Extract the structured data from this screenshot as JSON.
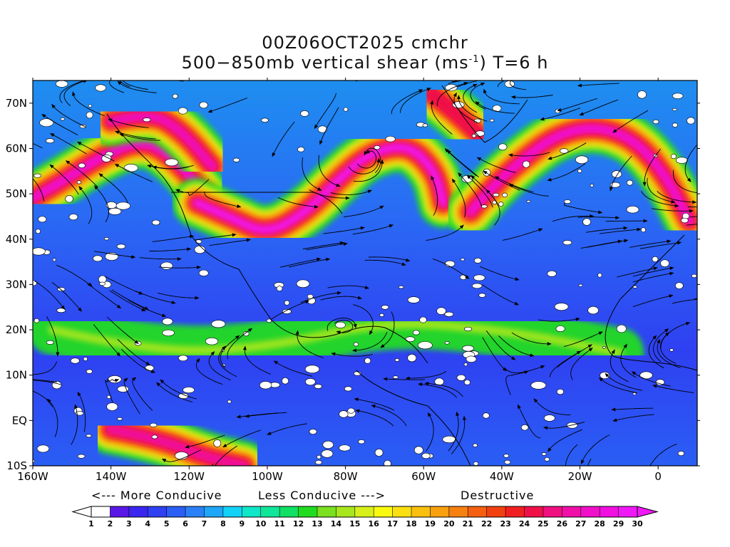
{
  "header": {
    "title_line1": "00Z06OCT2025 cmchr",
    "title_line2_pre": "500−850mb vertical shear (ms",
    "title_line2_sup": "-1",
    "title_line2_post": ") T=6 h"
  },
  "map": {
    "lon_labels": [
      "160W",
      "140W",
      "120W",
      "100W",
      "80W",
      "60W",
      "40W",
      "20W",
      "0"
    ],
    "lat_labels": [
      "70N",
      "60N",
      "50N",
      "40N",
      "30N",
      "20N",
      "10N",
      "EQ",
      "10S"
    ],
    "lon_range_deg": [
      -160,
      10
    ],
    "lat_range_deg": [
      -10,
      75
    ]
  },
  "legend": {
    "more_conducive": "<--- More Conducive",
    "less_conducive": "Less Conducive --->",
    "destructive": "Destructive",
    "levels": [
      "1",
      "2",
      "3",
      "4",
      "5",
      "6",
      "7",
      "8",
      "9",
      "10",
      "11",
      "12",
      "13",
      "14",
      "15",
      "16",
      "17",
      "18",
      "19",
      "20",
      "21",
      "22",
      "23",
      "24",
      "25",
      "26",
      "27",
      "28",
      "29",
      "30"
    ],
    "colors": [
      "#ffffff",
      "#5a18e6",
      "#3a26f0",
      "#2f40f2",
      "#2a5ef4",
      "#2a80f6",
      "#1ea6f8",
      "#12d2f8",
      "#10e6c8",
      "#10e69a",
      "#10e064",
      "#20dc20",
      "#7ae020",
      "#a8e61e",
      "#d8f01a",
      "#fafa10",
      "#fae010",
      "#fac010",
      "#f8a010",
      "#f68010",
      "#f46010",
      "#f24010",
      "#f02020",
      "#f01048",
      "#f01080",
      "#f010a8",
      "#f010c8",
      "#f010e0",
      "#f018f6"
    ]
  },
  "shear_bands": [
    {
      "name": "pacific-jet",
      "points": [
        [
          -160,
          49
        ],
        [
          -152,
          53
        ],
        [
          -143,
          58
        ],
        [
          -132,
          62
        ],
        [
          -124,
          58
        ],
        [
          -116,
          50
        ]
      ],
      "peak": 28
    },
    {
      "name": "alaska-jet",
      "points": [
        [
          -140,
          66
        ],
        [
          -130,
          68
        ],
        [
          -122,
          64
        ],
        [
          -114,
          56
        ]
      ],
      "peak": 27
    },
    {
      "name": "nw-trough-jet",
      "points": [
        [
          -118,
          48
        ],
        [
          -110,
          45
        ],
        [
          -100,
          41
        ],
        [
          -90,
          46
        ],
        [
          -82,
          53
        ],
        [
          -74,
          59
        ],
        [
          -64,
          61
        ],
        [
          -57,
          55
        ],
        [
          -55,
          48
        ]
      ],
      "peak": 29
    },
    {
      "name": "greenland-jet",
      "points": [
        [
          -58,
          72
        ],
        [
          -52,
          68
        ],
        [
          -46,
          63
        ]
      ],
      "peak": 24
    },
    {
      "name": "atlantic-jet",
      "points": [
        [
          -48,
          46
        ],
        [
          -42,
          52
        ],
        [
          -34,
          58
        ],
        [
          -26,
          63
        ],
        [
          -16,
          65
        ],
        [
          -6,
          62
        ],
        [
          2,
          54
        ],
        [
          8,
          44
        ]
      ],
      "peak": 28
    },
    {
      "name": "southern-jet",
      "points": [
        [
          -140,
          -2
        ],
        [
          -128,
          -4
        ],
        [
          -116,
          -8
        ],
        [
          -106,
          -10
        ]
      ],
      "peak": 26
    },
    {
      "name": "trade-band",
      "points": [
        [
          -155,
          20
        ],
        [
          -130,
          15
        ],
        [
          -100,
          16
        ],
        [
          -70,
          22
        ],
        [
          -40,
          20
        ],
        [
          -10,
          15
        ]
      ],
      "peak": 14
    }
  ]
}
